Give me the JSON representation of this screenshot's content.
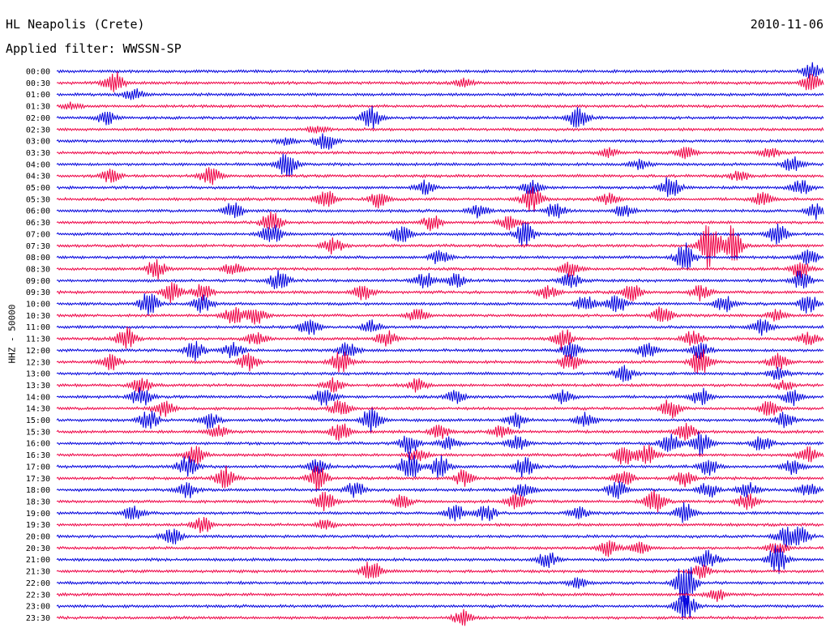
{
  "header": {
    "station": "HL Neapolis (Crete)",
    "date": "2010-11-06",
    "filter_line": "Applied filter: WWSSN-SP"
  },
  "chart_data": {
    "type": "seismogram",
    "ylabel": "HHZ - 50000",
    "colors": [
      "#0000dd",
      "#ee0044"
    ],
    "traces": [
      {
        "label": "00:00",
        "color": "#0000dd",
        "bursts": [
          [
            0.985,
            10
          ]
        ]
      },
      {
        "label": "00:30",
        "color": "#ee0044",
        "bursts": [
          [
            0.075,
            14
          ],
          [
            0.53,
            6
          ],
          [
            0.985,
            12
          ]
        ]
      },
      {
        "label": "01:00",
        "color": "#0000dd",
        "bursts": [
          [
            0.1,
            7
          ]
        ]
      },
      {
        "label": "01:30",
        "color": "#ee0044",
        "bursts": [
          [
            0.02,
            4
          ]
        ]
      },
      {
        "label": "02:00",
        "color": "#0000dd",
        "bursts": [
          [
            0.065,
            8
          ],
          [
            0.41,
            14
          ],
          [
            0.68,
            14
          ]
        ]
      },
      {
        "label": "02:30",
        "color": "#ee0044",
        "bursts": [
          [
            0.34,
            5
          ]
        ]
      },
      {
        "label": "03:00",
        "color": "#0000dd",
        "bursts": [
          [
            0.35,
            12
          ],
          [
            0.3,
            5
          ]
        ]
      },
      {
        "label": "03:30",
        "color": "#ee0044",
        "bursts": [
          [
            0.72,
            6
          ],
          [
            0.82,
            7
          ],
          [
            0.93,
            6
          ]
        ]
      },
      {
        "label": "04:00",
        "color": "#0000dd",
        "bursts": [
          [
            0.3,
            16
          ],
          [
            0.76,
            6
          ],
          [
            0.96,
            10
          ]
        ]
      },
      {
        "label": "04:30",
        "color": "#ee0044",
        "bursts": [
          [
            0.07,
            8
          ],
          [
            0.2,
            12
          ],
          [
            0.89,
            6
          ]
        ]
      },
      {
        "label": "05:00",
        "color": "#0000dd",
        "bursts": [
          [
            0.48,
            8
          ],
          [
            0.62,
            10
          ],
          [
            0.8,
            14
          ],
          [
            0.97,
            10
          ]
        ]
      },
      {
        "label": "05:30",
        "color": "#ee0044",
        "bursts": [
          [
            0.35,
            12
          ],
          [
            0.42,
            10
          ],
          [
            0.62,
            16
          ],
          [
            0.72,
            8
          ],
          [
            0.92,
            8
          ]
        ]
      },
      {
        "label": "06:00",
        "color": "#0000dd",
        "bursts": [
          [
            0.23,
            10
          ],
          [
            0.55,
            8
          ],
          [
            0.65,
            10
          ],
          [
            0.74,
            8
          ],
          [
            0.99,
            10
          ]
        ]
      },
      {
        "label": "06:30",
        "color": "#ee0044",
        "bursts": [
          [
            0.28,
            14
          ],
          [
            0.49,
            10
          ],
          [
            0.59,
            8
          ]
        ]
      },
      {
        "label": "07:00",
        "color": "#0000dd",
        "bursts": [
          [
            0.28,
            14
          ],
          [
            0.45,
            10
          ],
          [
            0.61,
            14
          ],
          [
            0.94,
            12
          ]
        ]
      },
      {
        "label": "07:30",
        "color": "#ee0044",
        "bursts": [
          [
            0.36,
            10
          ],
          [
            0.85,
            30
          ],
          [
            0.88,
            24
          ]
        ]
      },
      {
        "label": "08:00",
        "color": "#0000dd",
        "bursts": [
          [
            0.5,
            10
          ],
          [
            0.82,
            18
          ],
          [
            0.98,
            10
          ]
        ]
      },
      {
        "label": "08:30",
        "color": "#ee0044",
        "bursts": [
          [
            0.13,
            12
          ],
          [
            0.23,
            8
          ],
          [
            0.67,
            10
          ],
          [
            0.97,
            10
          ]
        ]
      },
      {
        "label": "09:00",
        "color": "#0000dd",
        "bursts": [
          [
            0.29,
            12
          ],
          [
            0.48,
            10
          ],
          [
            0.52,
            8
          ],
          [
            0.67,
            10
          ],
          [
            0.97,
            12
          ]
        ]
      },
      {
        "label": "09:30",
        "color": "#ee0044",
        "bursts": [
          [
            0.15,
            12
          ],
          [
            0.19,
            10
          ],
          [
            0.4,
            10
          ],
          [
            0.64,
            8
          ],
          [
            0.75,
            10
          ],
          [
            0.84,
            10
          ]
        ]
      },
      {
        "label": "10:00",
        "color": "#0000dd",
        "bursts": [
          [
            0.12,
            14
          ],
          [
            0.19,
            12
          ],
          [
            0.69,
            10
          ],
          [
            0.73,
            12
          ],
          [
            0.87,
            10
          ],
          [
            0.98,
            12
          ]
        ]
      },
      {
        "label": "10:30",
        "color": "#ee0044",
        "bursts": [
          [
            0.23,
            12
          ],
          [
            0.26,
            10
          ],
          [
            0.47,
            8
          ],
          [
            0.79,
            12
          ],
          [
            0.94,
            8
          ]
        ]
      },
      {
        "label": "11:00",
        "color": "#0000dd",
        "bursts": [
          [
            0.33,
            12
          ],
          [
            0.41,
            8
          ],
          [
            0.92,
            10
          ]
        ]
      },
      {
        "label": "11:30",
        "color": "#ee0044",
        "bursts": [
          [
            0.09,
            14
          ],
          [
            0.26,
            8
          ],
          [
            0.43,
            10
          ],
          [
            0.66,
            14
          ],
          [
            0.83,
            10
          ],
          [
            0.98,
            8
          ]
        ]
      },
      {
        "label": "12:00",
        "color": "#0000dd",
        "bursts": [
          [
            0.18,
            12
          ],
          [
            0.23,
            10
          ],
          [
            0.38,
            10
          ],
          [
            0.67,
            10
          ],
          [
            0.77,
            10
          ],
          [
            0.84,
            10
          ]
        ]
      },
      {
        "label": "12:30",
        "color": "#ee0044",
        "bursts": [
          [
            0.07,
            10
          ],
          [
            0.25,
            10
          ],
          [
            0.37,
            14
          ],
          [
            0.67,
            12
          ],
          [
            0.84,
            18
          ],
          [
            0.94,
            10
          ]
        ]
      },
      {
        "label": "13:00",
        "color": "#0000dd",
        "bursts": [
          [
            0.74,
            10
          ],
          [
            0.94,
            8
          ]
        ]
      },
      {
        "label": "13:30",
        "color": "#ee0044",
        "bursts": [
          [
            0.11,
            10
          ],
          [
            0.36,
            8
          ],
          [
            0.47,
            8
          ],
          [
            0.95,
            6
          ]
        ]
      },
      {
        "label": "14:00",
        "color": "#0000dd",
        "bursts": [
          [
            0.11,
            12
          ],
          [
            0.35,
            12
          ],
          [
            0.52,
            8
          ],
          [
            0.66,
            8
          ],
          [
            0.84,
            10
          ],
          [
            0.96,
            10
          ]
        ]
      },
      {
        "label": "14:30",
        "color": "#ee0044",
        "bursts": [
          [
            0.14,
            10
          ],
          [
            0.37,
            10
          ],
          [
            0.8,
            12
          ],
          [
            0.93,
            10
          ]
        ]
      },
      {
        "label": "15:00",
        "color": "#0000dd",
        "bursts": [
          [
            0.12,
            12
          ],
          [
            0.2,
            10
          ],
          [
            0.41,
            16
          ],
          [
            0.6,
            10
          ],
          [
            0.69,
            10
          ],
          [
            0.95,
            10
          ]
        ]
      },
      {
        "label": "15:30",
        "color": "#ee0044",
        "bursts": [
          [
            0.21,
            8
          ],
          [
            0.37,
            12
          ],
          [
            0.5,
            8
          ],
          [
            0.58,
            8
          ],
          [
            0.82,
            10
          ]
        ]
      },
      {
        "label": "16:00",
        "color": "#0000dd",
        "bursts": [
          [
            0.46,
            12
          ],
          [
            0.51,
            8
          ],
          [
            0.6,
            10
          ],
          [
            0.8,
            12
          ],
          [
            0.84,
            14
          ],
          [
            0.92,
            10
          ]
        ]
      },
      {
        "label": "16:30",
        "color": "#ee0044",
        "bursts": [
          [
            0.18,
            12
          ],
          [
            0.47,
            8
          ],
          [
            0.74,
            14
          ],
          [
            0.77,
            12
          ],
          [
            0.98,
            10
          ]
        ]
      },
      {
        "label": "17:00",
        "color": "#0000dd",
        "bursts": [
          [
            0.17,
            14
          ],
          [
            0.34,
            10
          ],
          [
            0.46,
            18
          ],
          [
            0.5,
            14
          ],
          [
            0.61,
            14
          ],
          [
            0.85,
            10
          ],
          [
            0.96,
            10
          ]
        ]
      },
      {
        "label": "17:30",
        "color": "#ee0044",
        "bursts": [
          [
            0.22,
            14
          ],
          [
            0.34,
            16
          ],
          [
            0.53,
            10
          ],
          [
            0.74,
            10
          ],
          [
            0.82,
            10
          ]
        ]
      },
      {
        "label": "18:00",
        "color": "#0000dd",
        "bursts": [
          [
            0.17,
            10
          ],
          [
            0.39,
            10
          ],
          [
            0.61,
            8
          ],
          [
            0.73,
            12
          ],
          [
            0.85,
            10
          ],
          [
            0.9,
            10
          ],
          [
            0.98,
            8
          ]
        ]
      },
      {
        "label": "18:30",
        "color": "#ee0044",
        "bursts": [
          [
            0.35,
            12
          ],
          [
            0.45,
            8
          ],
          [
            0.6,
            10
          ],
          [
            0.78,
            14
          ],
          [
            0.9,
            10
          ]
        ]
      },
      {
        "label": "19:00",
        "color": "#0000dd",
        "bursts": [
          [
            0.1,
            10
          ],
          [
            0.52,
            10
          ],
          [
            0.56,
            10
          ],
          [
            0.68,
            8
          ],
          [
            0.82,
            14
          ]
        ]
      },
      {
        "label": "19:30",
        "color": "#ee0044",
        "bursts": [
          [
            0.19,
            10
          ],
          [
            0.35,
            6
          ]
        ]
      },
      {
        "label": "20:00",
        "color": "#0000dd",
        "bursts": [
          [
            0.15,
            10
          ],
          [
            0.95,
            12
          ],
          [
            0.97,
            10
          ]
        ]
      },
      {
        "label": "20:30",
        "color": "#ee0044",
        "bursts": [
          [
            0.72,
            10
          ],
          [
            0.76,
            8
          ],
          [
            0.94,
            8
          ]
        ]
      },
      {
        "label": "21:00",
        "color": "#0000dd",
        "bursts": [
          [
            0.64,
            10
          ],
          [
            0.85,
            12
          ],
          [
            0.94,
            18
          ]
        ]
      },
      {
        "label": "21:30",
        "color": "#ee0044",
        "bursts": [
          [
            0.41,
            14
          ],
          [
            0.84,
            8
          ]
        ]
      },
      {
        "label": "22:00",
        "color": "#0000dd",
        "bursts": [
          [
            0.82,
            30
          ],
          [
            0.68,
            6
          ]
        ]
      },
      {
        "label": "22:30",
        "color": "#ee0044",
        "bursts": [
          [
            0.86,
            8
          ]
        ]
      },
      {
        "label": "23:00",
        "color": "#0000dd",
        "bursts": [
          [
            0.82,
            20
          ]
        ]
      },
      {
        "label": "23:30",
        "color": "#ee0044",
        "bursts": [
          [
            0.53,
            10
          ]
        ]
      }
    ]
  }
}
